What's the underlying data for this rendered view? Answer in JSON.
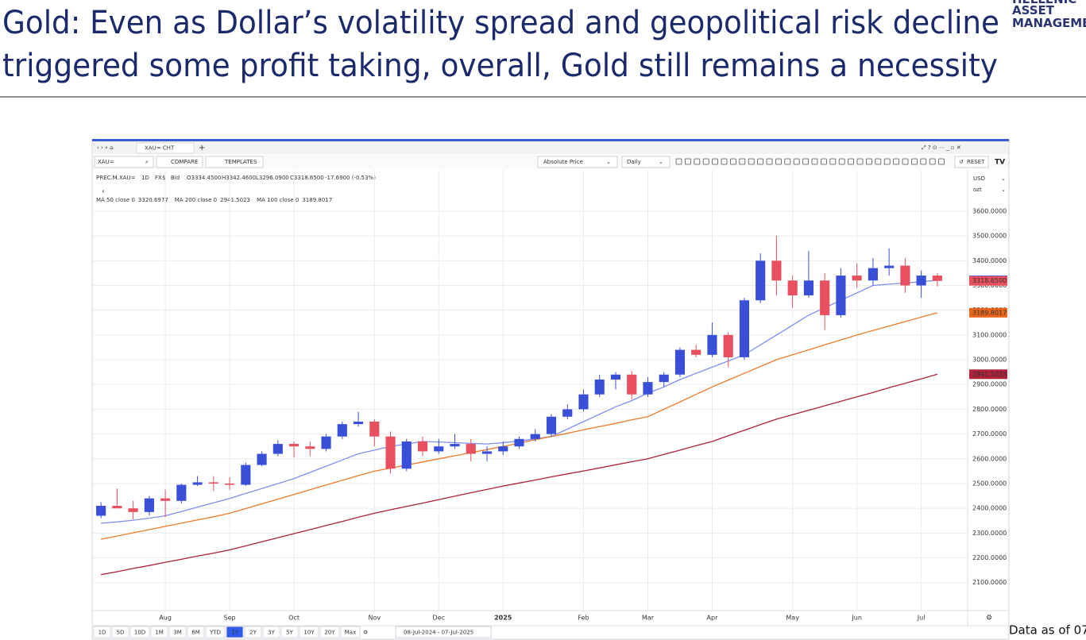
{
  "slide": {
    "title_line1": "Gold: Even as Dollar’s volatility spread and geopolitical risk decline",
    "title_line2": "triggered some profit taking, overall, Gold still remains a necessity",
    "logo_line1": "HELLENIC",
    "logo_line2": "ASSET",
    "logo_line3": "MANAGEMENT",
    "footer": "Data as of 07"
  },
  "ui": {
    "tab": "XAU= CHT",
    "tab_add": "+",
    "symbol_input": "XAU=",
    "compare": "COMPARE",
    "templates": "TEMPLATES",
    "price_mode": "Absolute Price",
    "interval": "Daily",
    "reset": "RESET",
    "currency": "USD",
    "unit": "ozt",
    "collapse": "‹",
    "ranges": [
      "1D",
      "5D",
      "10D",
      "1M",
      "3M",
      "6M",
      "YTD",
      "1Y",
      "2Y",
      "3Y",
      "5Y",
      "10Y",
      "20Y",
      "Max"
    ],
    "selected_range": "1Y",
    "date_range": "08-Jul-2024 - 07-Jul-2025"
  },
  "chart_data": {
    "type": "candlestick",
    "header": {
      "symbol": "PREC.M.XAU=",
      "interval": "1D",
      "currency": "FX$",
      "side": "Bid",
      "open": "O3334.4500",
      "high": "H3342.4600",
      "low": "L3296.0900",
      "close": "C3318.6500",
      "change": "-17.6900 (-0.53%)"
    },
    "last_close_label": "3318.6500",
    "up_color": "#3a4fd8",
    "down_color": "#e8505f",
    "categories": [
      null,
      null,
      null,
      null,
      "Aug",
      null,
      null,
      null,
      "Sep",
      null,
      null,
      null,
      "Oct",
      null,
      null,
      null,
      null,
      "Nov",
      null,
      null,
      null,
      "Dec",
      null,
      null,
      null,
      "2025",
      null,
      null,
      null,
      null,
      "Feb",
      null,
      null,
      null,
      "Mar",
      null,
      null,
      null,
      "Apr",
      null,
      null,
      null,
      null,
      "May",
      null,
      null,
      null,
      "Jun",
      null,
      null,
      null,
      "Jul",
      null
    ],
    "open": [
      2370,
      2410,
      2400,
      2385,
      2440,
      2430,
      2495,
      2505,
      2500,
      2495,
      2575,
      2620,
      2660,
      2650,
      2640,
      2690,
      2740,
      2750,
      2690,
      2560,
      2670,
      2630,
      2650,
      2660,
      2620,
      2630,
      2650,
      2680,
      2700,
      2770,
      2800,
      2860,
      2920,
      2940,
      2860,
      2910,
      2940,
      3040,
      3020,
      3100,
      3010,
      3240,
      3400,
      3320,
      3260,
      3320,
      3180,
      3340,
      3320,
      3370,
      3380,
      3300,
      3340
    ],
    "high": [
      2425,
      2480,
      2430,
      2450,
      2475,
      2500,
      2530,
      2530,
      2525,
      2585,
      2630,
      2675,
      2670,
      2670,
      2700,
      2750,
      2790,
      2760,
      2710,
      2680,
      2690,
      2680,
      2700,
      2680,
      2650,
      2670,
      2690,
      2720,
      2780,
      2820,
      2880,
      2940,
      2950,
      2955,
      2930,
      2950,
      3050,
      3060,
      3150,
      3110,
      3250,
      3430,
      3500,
      3340,
      3440,
      3350,
      3370,
      3390,
      3410,
      3450,
      3410,
      3360,
      3350
    ],
    "low": [
      2360,
      2400,
      2355,
      2370,
      2365,
      2420,
      2490,
      2470,
      2475,
      2490,
      2570,
      2610,
      2605,
      2610,
      2630,
      2680,
      2730,
      2650,
      2540,
      2550,
      2610,
      2620,
      2640,
      2590,
      2590,
      2615,
      2640,
      2670,
      2690,
      2760,
      2790,
      2850,
      2880,
      2840,
      2850,
      2890,
      2930,
      3010,
      3010,
      2970,
      3000,
      3230,
      3260,
      3210,
      3250,
      3120,
      3170,
      3290,
      3300,
      3340,
      3270,
      3250,
      3296
    ],
    "close": [
      2410,
      2400,
      2385,
      2440,
      2430,
      2495,
      2505,
      2500,
      2495,
      2575,
      2620,
      2660,
      2650,
      2640,
      2690,
      2740,
      2750,
      2690,
      2560,
      2670,
      2630,
      2650,
      2660,
      2620,
      2630,
      2650,
      2680,
      2700,
      2770,
      2800,
      2860,
      2920,
      2940,
      2860,
      2910,
      2940,
      3040,
      3020,
      3100,
      3010,
      3240,
      3400,
      3320,
      3260,
      3320,
      3180,
      3340,
      3320,
      3370,
      3380,
      3300,
      3340,
      3318.65
    ],
    "overlays": [
      {
        "name": "MA 50 close 0",
        "color": "#7f8ff0",
        "tag_color": "#3350e8",
        "value_label": "3320.6977",
        "values": [
          2340,
          2345,
          2352,
          2360,
          2370,
          2387,
          2405,
          2422,
          2440,
          2460,
          2480,
          2500,
          2520,
          2545,
          2570,
          2595,
          2620,
          2635,
          2650,
          2660,
          2670,
          2668,
          2665,
          2662,
          2660,
          2665,
          2672,
          2680,
          2690,
          2720,
          2750,
          2780,
          2810,
          2835,
          2865,
          2890,
          2920,
          2945,
          2970,
          2995,
          3020,
          3060,
          3100,
          3140,
          3180,
          3210,
          3240,
          3270,
          3300,
          3305,
          3310,
          3315,
          3320.6977
        ]
      },
      {
        "name": "MA 200 close 0",
        "color": "#b0213a",
        "tag_color": "#b0213a",
        "value_label": "2941.5023",
        "values": [
          2132,
          2144,
          2157,
          2169,
          2182,
          2194,
          2207,
          2219,
          2232,
          2248,
          2265,
          2281,
          2298,
          2314,
          2331,
          2347,
          2364,
          2380,
          2394,
          2408,
          2421,
          2435,
          2449,
          2463,
          2476,
          2490,
          2502,
          2514,
          2527,
          2539,
          2551,
          2563,
          2576,
          2588,
          2600,
          2618,
          2635,
          2653,
          2670,
          2693,
          2715,
          2738,
          2760,
          2778,
          2796,
          2814,
          2832,
          2850,
          2868,
          2887,
          2905,
          2923,
          2941.5023
        ]
      },
      {
        "name": "MA 100 close 0",
        "color": "#f07a28",
        "tag_color": "#e8661c",
        "value_label": "3189.8017",
        "values": [
          2275,
          2288,
          2301,
          2314,
          2327,
          2340,
          2353,
          2366,
          2380,
          2399,
          2418,
          2437,
          2456,
          2475,
          2494,
          2513,
          2532,
          2550,
          2562,
          2575,
          2587,
          2600,
          2612,
          2625,
          2637,
          2650,
          2663,
          2677,
          2690,
          2703,
          2717,
          2730,
          2743,
          2757,
          2770,
          2800,
          2830,
          2860,
          2890,
          2918,
          2945,
          2973,
          3000,
          3020,
          3040,
          3060,
          3080,
          3100,
          3118,
          3136,
          3154,
          3172,
          3189.8017
        ]
      }
    ],
    "close_tag_color": "#e8505f",
    "ylim": [
      1990,
      3680
    ],
    "yticks": [
      {
        "value": 2100,
        "label": "2100.0000"
      },
      {
        "value": 2200,
        "label": "2200.0000"
      },
      {
        "value": 2300,
        "label": "2300.0000"
      },
      {
        "value": 2400,
        "label": "2400.0000"
      },
      {
        "value": 2500,
        "label": "2500.0000"
      },
      {
        "value": 2600,
        "label": "2600.0000"
      },
      {
        "value": 2700,
        "label": "2700.0000"
      },
      {
        "value": 2800,
        "label": "2800.0000"
      },
      {
        "value": 2900,
        "label": "2900.0000"
      },
      {
        "value": 3000,
        "label": "3000.0000"
      },
      {
        "value": 3100,
        "label": "3100.0000"
      },
      {
        "value": 3200,
        "label": "3200.0000"
      },
      {
        "value": 3300,
        "label": "3300.0000"
      },
      {
        "value": 3400,
        "label": "3400.0000"
      },
      {
        "value": 3500,
        "label": "3500.0000"
      },
      {
        "value": 3600,
        "label": "3600.0000"
      }
    ],
    "grid": true
  }
}
